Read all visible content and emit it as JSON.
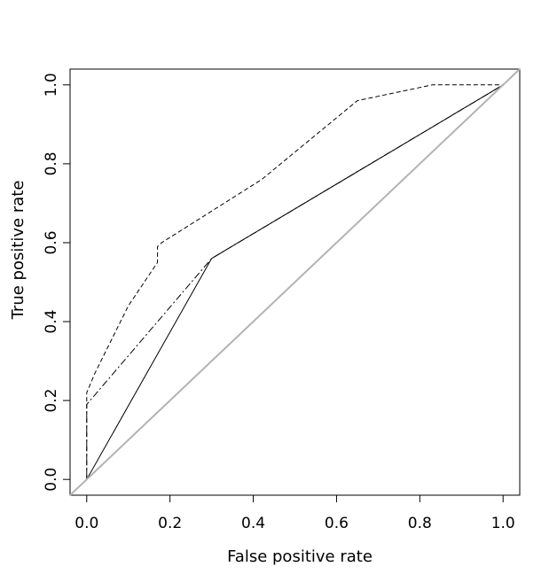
{
  "chart_data": {
    "type": "line",
    "title": "",
    "xlabel": "False positive rate",
    "ylabel": "True positive rate",
    "xlim": [
      -0.04,
      1.04
    ],
    "ylim": [
      -0.04,
      1.04
    ],
    "xticks": [
      0.0,
      0.2,
      0.4,
      0.6,
      0.8,
      1.0
    ],
    "yticks": [
      0.0,
      0.2,
      0.4,
      0.6,
      0.8,
      1.0
    ],
    "tick_labels": [
      "0.0",
      "0.2",
      "0.4",
      "0.6",
      "0.8",
      "1.0"
    ],
    "grid": false,
    "legend": "none",
    "series": [
      {
        "style": "dashed",
        "color": "#000000",
        "x": [
          0.0,
          0.0,
          0.02,
          0.1,
          0.17,
          0.17,
          0.18,
          0.3,
          0.42,
          0.65,
          0.83,
          1.0
        ],
        "y": [
          0.0,
          0.22,
          0.27,
          0.44,
          0.55,
          0.59,
          0.6,
          0.68,
          0.76,
          0.96,
          1.0,
          1.0
        ]
      },
      {
        "style": "dashdot",
        "color": "#000000",
        "x": [
          0.0,
          0.0,
          0.3,
          1.0
        ],
        "y": [
          0.0,
          0.19,
          0.56,
          1.0
        ]
      },
      {
        "style": "solid",
        "color": "#000000",
        "x": [
          0.0,
          0.3,
          1.0
        ],
        "y": [
          0.0,
          0.56,
          1.0
        ]
      },
      {
        "style": "solid",
        "color": "#b3b3b3",
        "x": [
          -0.04,
          1.04
        ],
        "y": [
          -0.04,
          1.04
        ]
      }
    ]
  }
}
